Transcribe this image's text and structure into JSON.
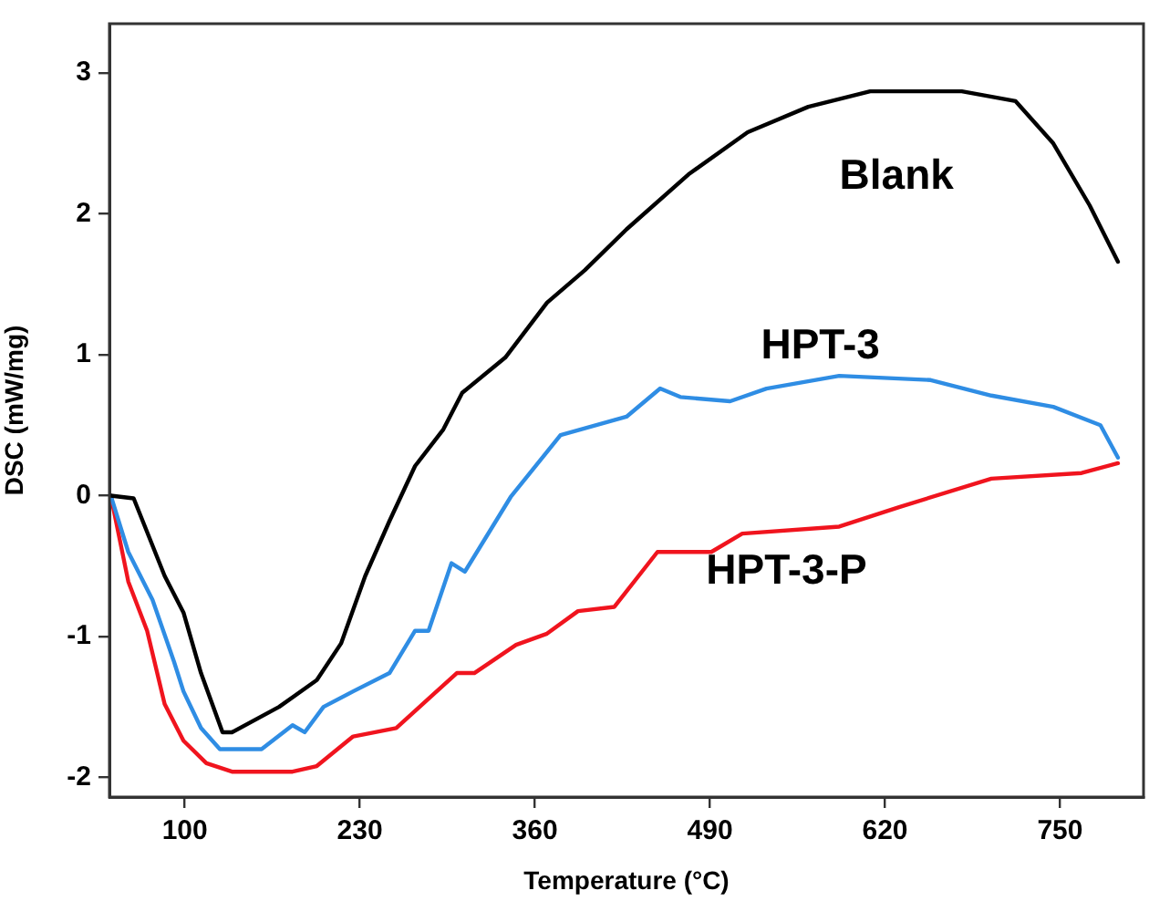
{
  "chart_data": {
    "type": "line",
    "xlabel": "Temperature (°C)",
    "ylabel": "DSC (mW/mg)",
    "xlim": [
      44,
      812
    ],
    "ylim": [
      -2.14,
      3.35
    ],
    "xticks": [
      100,
      230,
      360,
      490,
      620,
      750
    ],
    "yticks": [
      -2,
      -1,
      0,
      1,
      2,
      3
    ],
    "grid": false,
    "legend": false,
    "marker": "none",
    "line_style": "solid",
    "series": [
      {
        "name": "Blank",
        "color": "#000000",
        "x": [
          45,
          62,
          85,
          99,
          112,
          128,
          135,
          170,
          198,
          216,
          234,
          252,
          271,
          292,
          306,
          338,
          369,
          397,
          428,
          474,
          518,
          563,
          609,
          677,
          717,
          745,
          772,
          793
        ],
        "values": [
          0,
          -0.02,
          -0.57,
          -0.83,
          -1.26,
          -1.68,
          -1.68,
          -1.5,
          -1.31,
          -1.05,
          -0.57,
          -0.18,
          0.21,
          0.47,
          0.73,
          0.98,
          1.37,
          1.6,
          1.89,
          2.28,
          2.58,
          2.76,
          2.87,
          2.87,
          2.8,
          2.5,
          2.06,
          1.66
        ]
      },
      {
        "name": "HPT-3",
        "color": "#2f8de4",
        "x": [
          45,
          58,
          76,
          92,
          99,
          112,
          126,
          157,
          180,
          189,
          203,
          225,
          252,
          271,
          281,
          298,
          308,
          342,
          379,
          428,
          453,
          468,
          505,
          532,
          586,
          654,
          699,
          745,
          780,
          793
        ],
        "values": [
          0,
          -0.4,
          -0.74,
          -1.18,
          -1.39,
          -1.65,
          -1.8,
          -1.8,
          -1.63,
          -1.68,
          -1.5,
          -1.39,
          -1.26,
          -0.96,
          -0.96,
          -0.48,
          -0.54,
          -0.01,
          0.43,
          0.56,
          0.76,
          0.7,
          0.67,
          0.76,
          0.85,
          0.82,
          0.71,
          0.63,
          0.5,
          0.27
        ]
      },
      {
        "name": "HPT-3-P",
        "color": "#f0141e",
        "x": [
          45,
          58,
          72,
          85,
          99,
          116,
          135,
          180,
          198,
          225,
          257,
          302,
          315,
          346,
          369,
          392,
          419,
          451,
          491,
          514,
          586,
          631,
          699,
          766,
          793
        ],
        "values": [
          0,
          -0.61,
          -0.96,
          -1.48,
          -1.74,
          -1.9,
          -1.96,
          -1.96,
          -1.92,
          -1.71,
          -1.65,
          -1.26,
          -1.26,
          -1.06,
          -0.98,
          -0.82,
          -0.79,
          -0.4,
          -0.4,
          -0.27,
          -0.22,
          -0.08,
          0.12,
          0.16,
          0.23
        ]
      }
    ]
  }
}
